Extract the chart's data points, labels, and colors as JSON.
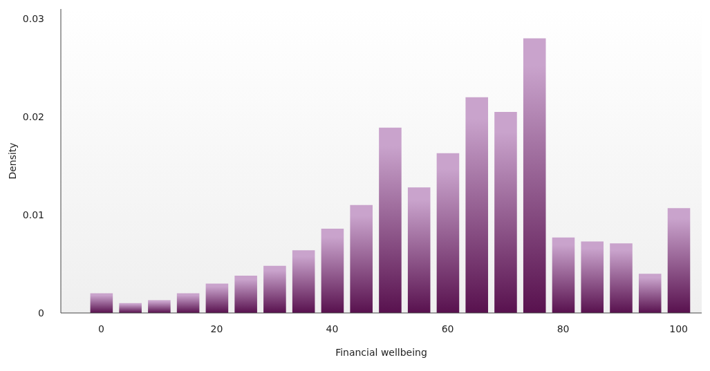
{
  "chart_data": {
    "type": "histogram",
    "xlabel": "Financial wellbeing",
    "ylabel": "Density",
    "bins": [
      -2.5,
      2.5,
      7.5,
      12.5,
      17.5,
      22.5,
      27.5,
      32.5,
      37.5,
      42.5,
      47.5,
      52.5,
      57.5,
      62.5,
      67.5,
      72.5,
      77.5,
      82.5,
      87.5,
      92.5,
      97.5,
      102.5
    ],
    "values": [
      0.002,
      0.001,
      0.0013,
      0.002,
      0.003,
      0.0038,
      0.0048,
      0.0064,
      0.0086,
      0.011,
      0.0189,
      0.0128,
      0.0163,
      0.022,
      0.0205,
      0.028,
      0.0077,
      0.0073,
      0.0071,
      0.004,
      0.0107
    ],
    "color": "#c9a3cc",
    "xlim": [
      -7,
      104
    ],
    "xticks": [
      0,
      20,
      40,
      60,
      80,
      100
    ],
    "ylim": [
      0,
      0.031
    ],
    "yticks": [
      0,
      0.01,
      0.02,
      0.03
    ],
    "grid": false
  }
}
